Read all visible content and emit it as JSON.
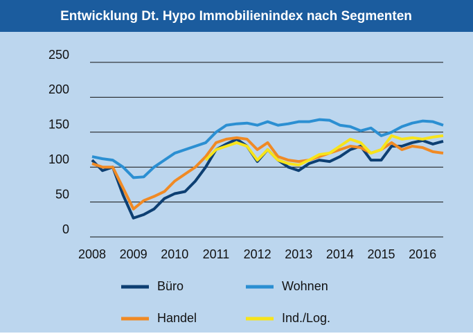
{
  "chart_data": {
    "type": "line",
    "title": "Entwicklung Dt. Hypo Immobilienindex nach Segmenten",
    "x": [
      2008,
      2008.25,
      2008.5,
      2008.75,
      2009,
      2009.25,
      2009.5,
      2009.75,
      2010,
      2010.25,
      2010.5,
      2010.75,
      2011,
      2011.25,
      2011.5,
      2011.75,
      2012,
      2012.25,
      2012.5,
      2012.75,
      2013,
      2013.25,
      2013.5,
      2013.75,
      2014,
      2014.25,
      2014.5,
      2014.75,
      2015,
      2015.25,
      2015.5,
      2015.75,
      2016,
      2016.25,
      2016.5
    ],
    "series": [
      {
        "name": "Büro",
        "color": "#0d3f72",
        "values": [
          110,
          95,
          100,
          60,
          27,
          32,
          40,
          55,
          62,
          65,
          80,
          100,
          125,
          133,
          140,
          130,
          108,
          125,
          110,
          100,
          95,
          105,
          110,
          108,
          115,
          125,
          130,
          110,
          110,
          130,
          130,
          135,
          138,
          133,
          137
        ]
      },
      {
        "name": "Wohnen",
        "color": "#2b8fd2",
        "values": [
          115,
          112,
          110,
          100,
          85,
          86,
          100,
          110,
          120,
          125,
          130,
          135,
          150,
          160,
          162,
          163,
          160,
          165,
          160,
          162,
          165,
          165,
          168,
          167,
          160,
          158,
          152,
          156,
          145,
          150,
          158,
          163,
          166,
          165,
          160
        ]
      },
      {
        "name": "Handel",
        "color": "#f08a24",
        "values": [
          105,
          100,
          100,
          70,
          40,
          52,
          58,
          65,
          80,
          90,
          100,
          115,
          135,
          140,
          142,
          140,
          125,
          135,
          115,
          110,
          108,
          110,
          115,
          120,
          125,
          130,
          128,
          120,
          125,
          135,
          125,
          130,
          128,
          122,
          120
        ]
      },
      {
        "name": "Ind./Log.",
        "color": "#f7e41b",
        "values": [
          null,
          null,
          null,
          null,
          null,
          null,
          null,
          null,
          null,
          null,
          null,
          110,
          125,
          130,
          135,
          130,
          110,
          125,
          110,
          105,
          103,
          110,
          118,
          120,
          130,
          140,
          135,
          120,
          125,
          145,
          140,
          142,
          140,
          143,
          145
        ]
      }
    ],
    "xlim": [
      2008,
      2016.5
    ],
    "xticks": [
      2008,
      2009,
      2010,
      2011,
      2012,
      2013,
      2014,
      2015,
      2016
    ],
    "ylim": [
      0,
      250
    ],
    "yticks": [
      0,
      50,
      100,
      150,
      200,
      250
    ],
    "grid": true
  }
}
